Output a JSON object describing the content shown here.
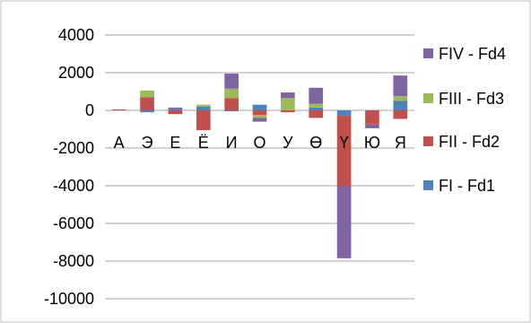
{
  "chart_data": {
    "type": "bar",
    "stacked": true,
    "categories": [
      "А",
      "Э",
      "Е",
      "Ё",
      "И",
      "О",
      "У",
      "Ө",
      "Ү",
      "Ю",
      "Я"
    ],
    "ylim": [
      -10000,
      4000
    ],
    "yticks": [
      4000,
      2000,
      0,
      -2000,
      -4000,
      -6000,
      -8000,
      -10000
    ],
    "grid": true,
    "legend_position": "right",
    "series": [
      {
        "name": "FI - Fd1",
        "color": "#4f81bd",
        "values": [
          0,
          -100,
          100,
          200,
          -50,
          300,
          0,
          150,
          -250,
          0,
          500
        ]
      },
      {
        "name": "FII - Fd2",
        "color": "#c0504d",
        "values": [
          50,
          700,
          -200,
          -1050,
          650,
          -250,
          -100,
          -400,
          -3750,
          -750,
          -450
        ]
      },
      {
        "name": "FIII - Fd3",
        "color": "#9bbb59",
        "values": [
          0,
          350,
          0,
          100,
          500,
          -150,
          650,
          200,
          0,
          0,
          250
        ]
      },
      {
        "name": "FIV - Fd4",
        "color": "#8064a2",
        "values": [
          0,
          0,
          50,
          0,
          800,
          -200,
          300,
          850,
          -3850,
          -200,
          1100
        ]
      }
    ]
  }
}
